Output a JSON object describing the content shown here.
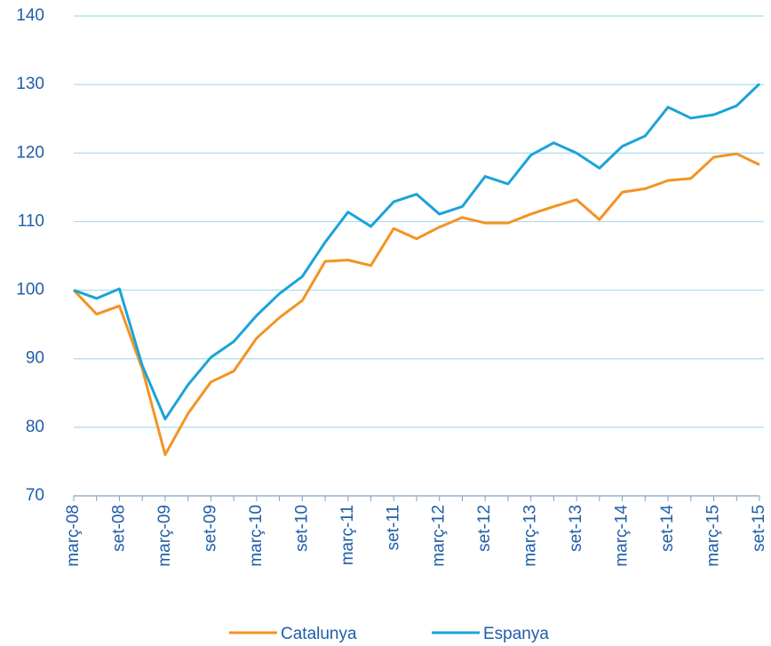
{
  "chart_data": {
    "type": "line",
    "categories": [
      "març-08",
      null,
      "set-08",
      null,
      "març-09",
      null,
      "set-09",
      null,
      "març-10",
      null,
      "set-10",
      null,
      "març-11",
      null,
      "set-11",
      null,
      "març-12",
      null,
      "set-12",
      null,
      "març-13",
      null,
      "set-13",
      null,
      "març-14",
      null,
      "set-14",
      null,
      "març-15",
      null,
      "set-15"
    ],
    "series": [
      {
        "name": "Catalunya",
        "color": "#f39323",
        "values": [
          100,
          96.5,
          97.7,
          88.5,
          76,
          82,
          86.6,
          88.2,
          93,
          96,
          98.5,
          104.2,
          104.4,
          103.6,
          109,
          107.5,
          109.2,
          110.6,
          109.8,
          109.8,
          111.1,
          112.2,
          113.2,
          110.3,
          114.3,
          114.8,
          116,
          116.3,
          119.4,
          119.9,
          118.3
        ]
      },
      {
        "name": "Espanya",
        "color": "#1ba3d9",
        "values": [
          100,
          98.8,
          100.2,
          89,
          81.2,
          86.2,
          90.2,
          92.5,
          96.3,
          99.5,
          102,
          107,
          111.4,
          109.3,
          112.9,
          114,
          111.1,
          112.2,
          116.6,
          115.5,
          119.7,
          121.5,
          120,
          117.8,
          121,
          122.5,
          126.7,
          125.1,
          125.6,
          126.9,
          130.1
        ]
      }
    ],
    "ylim": [
      70,
      140
    ],
    "yticks": [
      70,
      80,
      90,
      100,
      110,
      120,
      130,
      140
    ],
    "grid": true,
    "legend": "bottom"
  }
}
